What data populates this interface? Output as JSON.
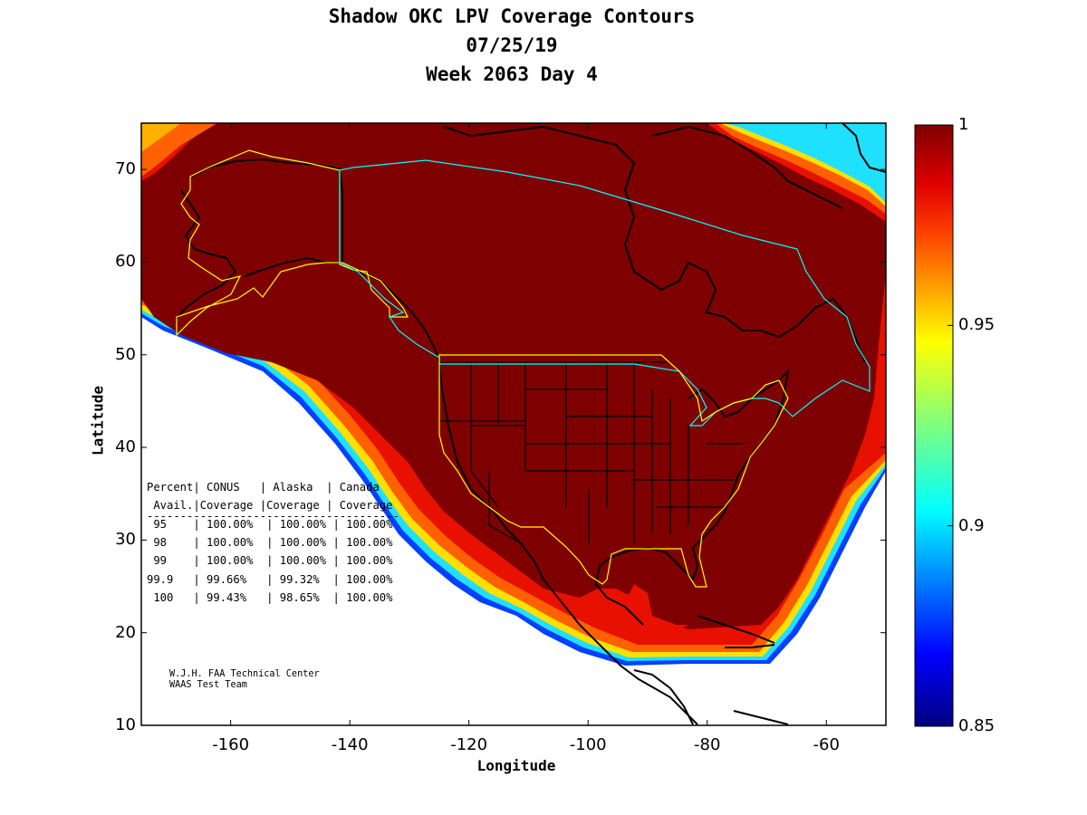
{
  "chart_data": {
    "type": "contour_map",
    "title_lines": [
      "Shadow OKC LPV Coverage Contours",
      "07/25/19",
      "Week 2063 Day 4"
    ],
    "xlabel": "Longitude",
    "ylabel": "Latitude",
    "xlim": [
      -175,
      -50
    ],
    "ylim": [
      10,
      75
    ],
    "x_ticks": [
      -160,
      -140,
      -120,
      -100,
      -80,
      -60
    ],
    "y_ticks": [
      10,
      20,
      30,
      40,
      50,
      60,
      70
    ],
    "colorbar": {
      "range": [
        0.85,
        1
      ],
      "ticks": [
        {
          "value": 0.85,
          "label": "0.85"
        },
        {
          "value": 0.9,
          "label": "0.9"
        },
        {
          "value": 0.95,
          "label": "0.95"
        },
        {
          "value": 1,
          "label": "1"
        }
      ],
      "colors": [
        "#00007f",
        "#0000ff",
        "#007fff",
        "#00ffff",
        "#7fff7f",
        "#ffff00",
        "#ff7f00",
        "#ff0000",
        "#7f0000"
      ]
    },
    "availability_table": {
      "header1": "Percent| CONUS   | Alaska  | Canada",
      "header2": " Avail.|Coverage |Coverage | Coverage",
      "divider": "--------------------------------------",
      "rows": [
        " 95    | 100.00%  | 100.00% | 100.00%",
        " 98    | 100.00%  | 100.00% | 100.00%",
        " 99    | 100.00%  | 100.00% | 100.00%",
        "99.9   | 99.66%   | 99.32%  | 100.00%",
        " 100   | 99.43%   | 98.65%  | 100.00%"
      ]
    },
    "credits": [
      "W.J.H. FAA Technical Center",
      "WAAS Test Team"
    ]
  }
}
